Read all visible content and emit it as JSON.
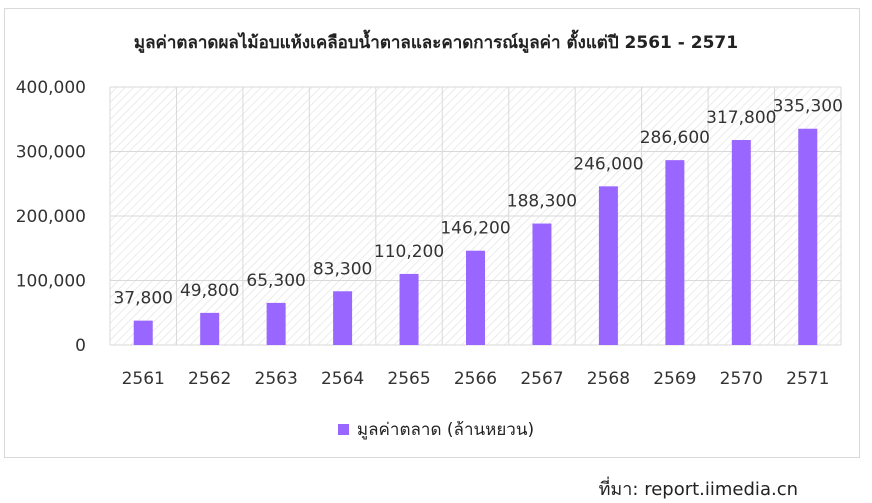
{
  "chart_data": {
    "type": "bar",
    "title": "มูลค่าตลาดผลไม้อบแห้งเคลือบน้ำตาลและคาดการณ์มูลค่า ตั้งแต่ปี 2561 - 2571",
    "categories": [
      "2561",
      "2562",
      "2563",
      "2564",
      "2565",
      "2566",
      "2567",
      "2568",
      "2569",
      "2570",
      "2571"
    ],
    "series": [
      {
        "name": "มูลค่าตลาด (ล้านหยวน)",
        "values": [
          37800,
          49800,
          65300,
          83300,
          110200,
          146200,
          188300,
          246000,
          286600,
          317800,
          335300
        ],
        "data_labels": [
          "37,800",
          "49,800",
          "65,300",
          "83,300",
          "110,200",
          "146,200",
          "188,300",
          "246,000",
          "286,600",
          "317,800",
          "335,300"
        ],
        "color": "#9966ff"
      }
    ],
    "ylim": [
      0,
      400000
    ],
    "y_ticks": [
      0,
      100000,
      200000,
      300000,
      400000
    ],
    "y_tick_labels": [
      "0",
      "100,000",
      "200,000",
      "300,000",
      "400,000"
    ],
    "grid": true,
    "plot_background": "hatched",
    "legend_position": "bottom"
  },
  "legend_label": "มูลค่าตลาด (ล้านหยวน)",
  "source": {
    "label": "ที่มา:",
    "text": "report.iimedia.cn"
  },
  "colors": {
    "bar": "#9966ff",
    "grid": "#d9d9d9",
    "hatch": "#e6e6e6"
  }
}
